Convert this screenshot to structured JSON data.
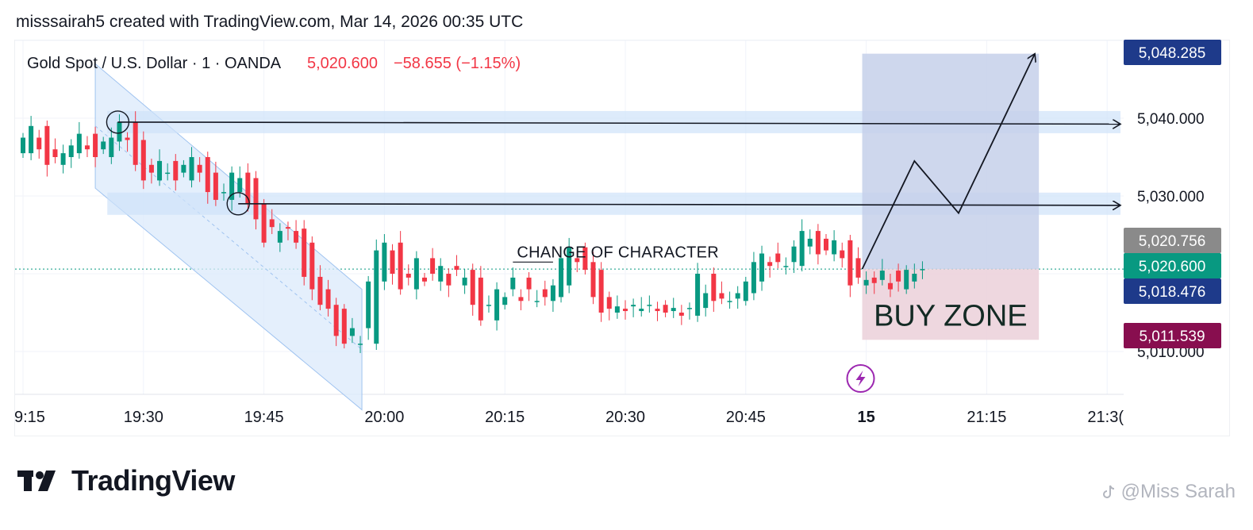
{
  "header": {
    "attribution": "misssairah5 created with TradingView.com, Mar 14, 2026 00:35 UTC"
  },
  "legend": {
    "symbol": "Gold Spot / U.S. Dollar · 1 · OANDA",
    "last": "5,020.600",
    "change": "−58.655 (−1.15%)"
  },
  "footer": {
    "brand": "TradingView",
    "logo_icon": "tradingview-logo-icon",
    "watermark": "@Miss Sarah",
    "watermark_icon": "social-app-icon"
  },
  "colors": {
    "up": "#089981",
    "down": "#f23645",
    "channel": "#dbe9fb",
    "zone_band": "#cfe2f9",
    "target_box": "#c5d0ea",
    "buy_zone": "#ecd3dc",
    "price_tag_blue": "#1e3a8a",
    "price_tag_teal": "#089981",
    "price_tag_gray": "#8a8a8a",
    "price_tag_maroon": "#880e4f",
    "flash_icon": "#9c27b0"
  },
  "chart_data": {
    "type": "candlestick",
    "y_axis": {
      "range": [
        5004,
        5051
      ],
      "ticks": [
        5040,
        5030
      ],
      "tick_labels": [
        "5,040.000",
        "5,030.000"
      ],
      "partially_hidden_label": "5,010.000"
    },
    "x_axis": {
      "range": [
        "19:15",
        "21:30"
      ],
      "tick_labels": [
        "9:15",
        "19:30",
        "19:45",
        "20:00",
        "20:15",
        "20:30",
        "20:45",
        "15",
        "21:15",
        "21:3("
      ],
      "tick_minutes": [
        0,
        15,
        30,
        45,
        60,
        75,
        90,
        105,
        120,
        135
      ]
    },
    "price_tags": [
      {
        "label": "5,048.285",
        "price": 5048.285,
        "style": "blue"
      },
      {
        "label": "5,020.756",
        "price": 5020.756,
        "style": "gray"
      },
      {
        "label": "5,020.600",
        "price": 5020.6,
        "style": "teal"
      },
      {
        "label": "5,018.476",
        "price": 5018.476,
        "style": "blue"
      },
      {
        "label": "5,011.539",
        "price": 5011.539,
        "style": "maroon"
      }
    ],
    "last_price": 5020.6,
    "candles_close": [
      5037.5,
      5039,
      5036,
      5034,
      5035,
      5035.5,
      5036.5,
      5038,
      5036,
      5035,
      5037,
      5037.5,
      5039.5,
      5037.2,
      5034,
      5032,
      5033,
      5034.5,
      5033,
      5032,
      5034,
      5035,
      5033,
      5030.5,
      5029.5,
      5030.5,
      5033,
      5032.3,
      5029,
      5027,
      5024,
      5026,
      5025.5,
      5025.8,
      5024,
      5019.6,
      5018,
      5016,
      5015.5,
      5012,
      5011,
      5013,
      5011,
      5019,
      5023,
      5024,
      5020,
      5018,
      5019.5,
      5022,
      5019,
      5020,
      5021,
      5018.5,
      5020.5,
      5019.5,
      5016,
      5014,
      5016,
      5018,
      5017,
      5019.5,
      5016.5,
      5018,
      5016.5,
      5017,
      5018.5,
      5022,
      5023.4,
      5021.5,
      5020.5,
      5017,
      5015,
      5015.5,
      5015.8,
      5015.2,
      5016,
      5015.5,
      5016,
      5015.2,
      5015,
      5015.6,
      5014.6,
      5015.6,
      5020,
      5017.5,
      5016.5,
      5016.8,
      5016.5,
      5017.5,
      5019,
      5021.5,
      5022.6,
      5021,
      5021.5,
      5021,
      5023.5,
      5025.5,
      5024.5,
      5022.5,
      5023,
      5024.3,
      5022,
      5018.5,
      5019.5,
      5019.2,
      5018.8,
      5020.4,
      5018,
      5019,
      5020.5,
      5020,
      5020.6
    ],
    "candles_open": [
      5035.5,
      5037.5,
      5039,
      5036,
      5034,
      5035,
      5035.5,
      5036.5,
      5038,
      5036,
      5035,
      5037,
      5037.5,
      5039.5,
      5037.2,
      5034,
      5032,
      5033,
      5034.5,
      5033,
      5032,
      5034,
      5035,
      5033,
      5030.5,
      5029.5,
      5030.5,
      5033,
      5032.3,
      5029,
      5027,
      5024,
      5026,
      5025.5,
      5025.8,
      5024,
      5019.6,
      5018,
      5016,
      5015.5,
      5012,
      5011,
      5013,
      5011,
      5019,
      5023,
      5024,
      5020,
      5018,
      5019.5,
      5022,
      5019,
      5020,
      5021,
      5018.5,
      5020.5,
      5019.5,
      5016,
      5014,
      5016,
      5018,
      5017,
      5019.5,
      5016.5,
      5018,
      5016.5,
      5017,
      5018.5,
      5022,
      5023.4,
      5021.5,
      5020.5,
      5017,
      5015,
      5015.5,
      5015.8,
      5015.2,
      5016,
      5015.5,
      5016,
      5015.2,
      5015,
      5015.6,
      5014.6,
      5015.6,
      5020,
      5017.5,
      5016.5,
      5016.8,
      5016.5,
      5017.5,
      5019,
      5021.5,
      5022.6,
      5021,
      5021.5,
      5021,
      5023.5,
      5025.5,
      5024.5,
      5022.5,
      5023,
      5024.3,
      5022,
      5018.5,
      5019.5,
      5019.2,
      5018.8,
      5020.4,
      5018,
      5019,
      5020.5,
      5020
    ],
    "annotations": {
      "choch_label": "CHANGE OF CHARACTER",
      "buy_zone_label": "BUY ZONE",
      "resistance_levels": [
        5039.5,
        5029
      ],
      "target_box": [
        5020.6,
        5048.3
      ],
      "buy_zone": [
        5011.5,
        5020.6
      ],
      "projection_path": [
        {
          "minute": 104.5,
          "price": 5020.6
        },
        {
          "minute": 111,
          "price": 5034.5
        },
        {
          "minute": 116.5,
          "price": 5027.8
        },
        {
          "minute": 126,
          "price": 5048.3
        }
      ],
      "circled_points": [
        {
          "minute": 11.8,
          "price": 5039.5
        },
        {
          "minute": 26.8,
          "price": 5029
        }
      ],
      "channel": {
        "upper_start": {
          "minute": 9,
          "price": 5047
        },
        "upper_end": {
          "minute": 42.2,
          "price": 5018
        },
        "lower_start": {
          "minute": 9,
          "price": 5031
        },
        "lower_end": {
          "minute": 42.2,
          "price": 5002.5
        }
      }
    }
  }
}
